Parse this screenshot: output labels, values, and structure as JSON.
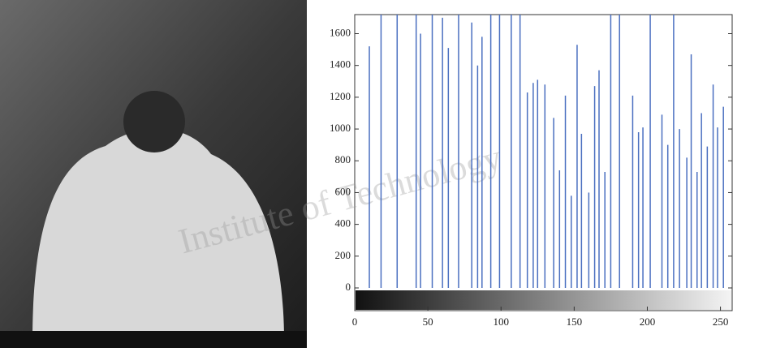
{
  "chart_data": {
    "type": "stem",
    "x": [
      10,
      18,
      29,
      42,
      45,
      53,
      60,
      64,
      71,
      80,
      84,
      87,
      93,
      99,
      107,
      113,
      118,
      122,
      125,
      130,
      136,
      140,
      144,
      148,
      152,
      155,
      160,
      164,
      167,
      171,
      175,
      181,
      190,
      194,
      197,
      202,
      210,
      214,
      218,
      222,
      227,
      230,
      234,
      237,
      241,
      245,
      248,
      252
    ],
    "values": [
      1520,
      1720,
      1720,
      1720,
      1600,
      1720,
      1700,
      1510,
      1720,
      1670,
      1400,
      1580,
      1720,
      1720,
      1720,
      1720,
      1230,
      1290,
      1310,
      1280,
      1070,
      740,
      1210,
      580,
      1530,
      970,
      600,
      1270,
      1370,
      730,
      1720,
      1720,
      1210,
      980,
      1010,
      1720,
      1090,
      900,
      1720,
      1000,
      820,
      1470,
      730,
      1100,
      890,
      1280,
      1010,
      1140
    ],
    "color": "#4a6fc0",
    "xlim": [
      0,
      258
    ],
    "ylim": [
      0,
      1720
    ],
    "xticks": [
      0,
      50,
      100,
      150,
      200,
      250
    ],
    "yticks": [
      0,
      200,
      400,
      600,
      800,
      1000,
      1200,
      1400,
      1600
    ],
    "watermark": "Institute of Technology"
  }
}
